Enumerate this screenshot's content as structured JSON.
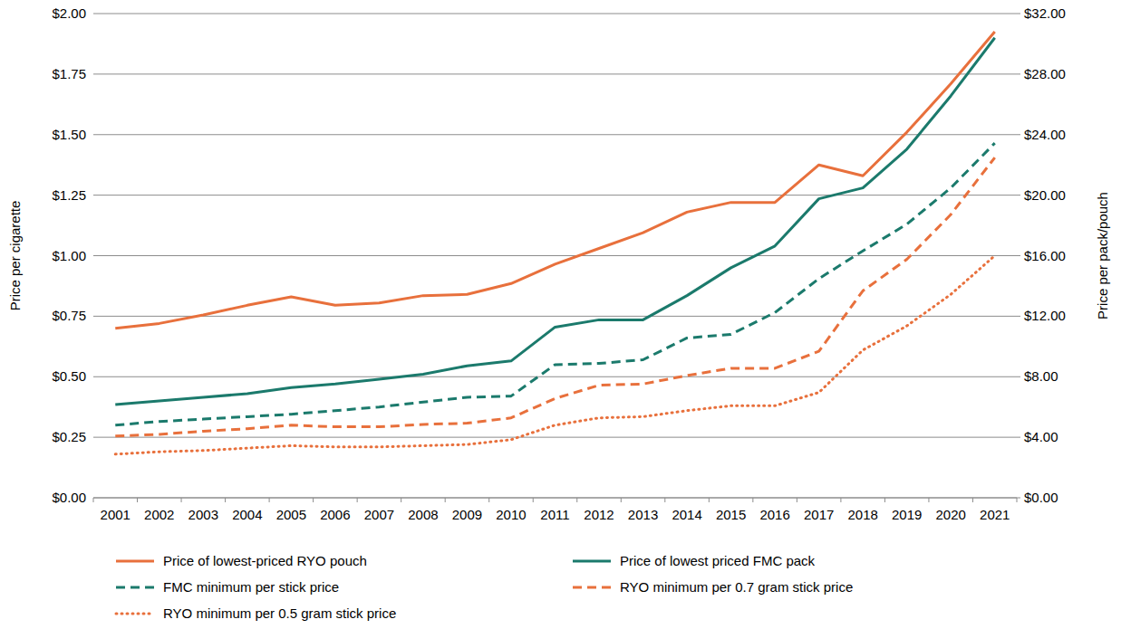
{
  "chart_data": {
    "type": "line",
    "y_label": "Price per cigarette",
    "y2_label": "Price per pack/pouch",
    "categories": [
      "2001",
      "2002",
      "2003",
      "2004",
      "2005",
      "2006",
      "2007",
      "2008",
      "2009",
      "2010",
      "2011",
      "2012",
      "2013",
      "2014",
      "2015",
      "2016",
      "2017",
      "2018",
      "2019",
      "2020",
      "2021"
    ],
    "ylim": [
      0,
      2
    ],
    "yticks": [
      {
        "value": 0,
        "label": "$0.00"
      },
      {
        "value": 0.25,
        "label": "$0.25"
      },
      {
        "value": 0.5,
        "label": "$0.50"
      },
      {
        "value": 0.75,
        "label": "$0.75"
      },
      {
        "value": 1,
        "label": "$1.00"
      },
      {
        "value": 1.25,
        "label": "$1.25"
      },
      {
        "value": 1.5,
        "label": "$1.50"
      },
      {
        "value": 1.75,
        "label": "$1.75"
      },
      {
        "value": 2,
        "label": "$2.00"
      }
    ],
    "y2lim": [
      0,
      32
    ],
    "y2ticks": [
      {
        "value": 0,
        "label": "$0.00"
      },
      {
        "value": 4,
        "label": "$4.00"
      },
      {
        "value": 8,
        "label": "$8.00"
      },
      {
        "value": 12,
        "label": "$12.00"
      },
      {
        "value": 16,
        "label": "$16.00"
      },
      {
        "value": 20,
        "label": "$20.00"
      },
      {
        "value": 24,
        "label": "$24.00"
      },
      {
        "value": 28,
        "label": "$28.00"
      },
      {
        "value": 32,
        "label": "$32.00"
      }
    ],
    "grid": true,
    "legend": "bottom",
    "series": [
      {
        "name": "Price of lowest-priced RYO pouch",
        "color": "#e8703c",
        "line_style": "solid",
        "axis": "y2",
        "values": [
          11.2,
          11.52,
          12.08,
          12.72,
          13.28,
          12.72,
          12.88,
          13.36,
          13.44,
          14.16,
          15.44,
          16.48,
          17.52,
          18.88,
          19.52,
          19.52,
          22.0,
          21.28,
          24.16,
          27.36,
          30.8
        ]
      },
      {
        "name": "Price of lowest priced FMC pack",
        "color": "#1b7a6c",
        "line_style": "solid",
        "axis": "y2",
        "values": [
          6.16,
          6.4,
          6.64,
          6.88,
          7.28,
          7.52,
          7.84,
          8.16,
          8.72,
          9.04,
          11.28,
          11.76,
          11.76,
          13.36,
          15.2,
          16.64,
          19.76,
          20.48,
          23.04,
          26.56,
          30.4
        ]
      },
      {
        "name": "FMC minimum per stick price",
        "color": "#1b7a6c",
        "line_style": "dashed",
        "values": [
          0.3,
          0.315,
          0.325,
          0.335,
          0.345,
          0.36,
          0.375,
          0.395,
          0.415,
          0.42,
          0.55,
          0.555,
          0.57,
          0.66,
          0.675,
          0.765,
          0.905,
          1.02,
          1.13,
          1.28,
          1.465
        ]
      },
      {
        "name": "RYO minimum per 0.7 gram stick price",
        "color": "#e8703c",
        "line_style": "dashed",
        "values": [
          0.255,
          0.262,
          0.275,
          0.285,
          0.3,
          0.293,
          0.293,
          0.303,
          0.308,
          0.33,
          0.41,
          0.465,
          0.47,
          0.505,
          0.535,
          0.535,
          0.605,
          0.855,
          0.985,
          1.17,
          1.405
        ]
      },
      {
        "name": "RYO minimum per 0.5 gram stick price",
        "color": "#e8703c",
        "line_style": "dotted",
        "values": [
          0.18,
          0.19,
          0.195,
          0.205,
          0.215,
          0.21,
          0.21,
          0.215,
          0.22,
          0.24,
          0.3,
          0.33,
          0.335,
          0.36,
          0.38,
          0.38,
          0.435,
          0.61,
          0.71,
          0.84,
          1.0
        ]
      }
    ]
  }
}
